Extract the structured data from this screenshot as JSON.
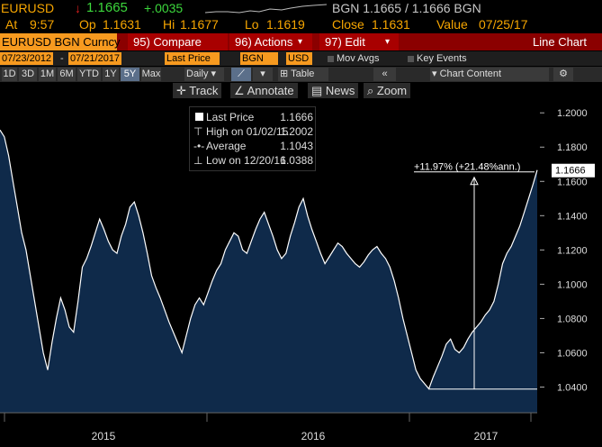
{
  "ticker": {
    "symbol": "EURUSD",
    "arrow": "↓",
    "last": "1.1665",
    "change": "+.0035",
    "quote": "BGN 1.1665 / 1.1666 BGN"
  },
  "info": {
    "at_label": "At",
    "at": "9:57",
    "op_label": "Op",
    "op": "1.1631",
    "hi_label": "Hi",
    "hi": "1.1677",
    "lo_label": "Lo",
    "lo": "1.1619",
    "close_label": "Close",
    "close": "1.1631",
    "value_label": "Value",
    "value": "07/25/17"
  },
  "toolbar": {
    "security": "EURUSD BGN Curncy",
    "compare": "95) Compare",
    "actions": "96) Actions",
    "edit": "97) Edit",
    "chart_type": "Line Chart"
  },
  "dates": {
    "start": "07/23/2012",
    "end": "07/21/2017",
    "field": "Last Price",
    "source": "BGN",
    "currency": "USD",
    "mov_avgs": "Mov Avgs",
    "key_events": "Key Events"
  },
  "periods": [
    "1D",
    "3D",
    "1M",
    "6M",
    "YTD",
    "1Y",
    "5Y",
    "Max"
  ],
  "selected_period": "5Y",
  "frequency": "Daily",
  "table_label": "Table",
  "chart_content_label": "Chart Content",
  "chart_tools": {
    "track": "Track",
    "annotate": "Annotate",
    "news": "News",
    "zoom": "Zoom"
  },
  "legend": [
    {
      "label": "Last Price",
      "value": "1.1666"
    },
    {
      "label": "High on 01/02/15",
      "value": "1.2002"
    },
    {
      "label": "Average",
      "value": "1.1043"
    },
    {
      "label": "Low on 12/20/16",
      "value": "1.0388"
    }
  ],
  "annotation": "+11.97% (+21.48%ann.)",
  "last_price_tag": "1.1666",
  "colors": {
    "amber": "#f7a600",
    "green": "#3cd73c",
    "red_bar": "#8b0000",
    "fill": "#0f2a4a",
    "line": "#ffffff"
  },
  "chart_data": {
    "type": "area",
    "y_ticks": [
      "1.2000",
      "1.1800",
      "1.1600",
      "1.1400",
      "1.1200",
      "1.1000",
      "1.0800",
      "1.0600",
      "1.0400"
    ],
    "x_ticks": [
      "2015",
      "2016",
      "2017"
    ],
    "ylim": [
      1.025,
      1.208
    ],
    "series": [
      {
        "values": [
          1.19,
          1.186,
          1.175,
          1.16,
          1.145,
          1.13,
          1.12,
          1.105,
          1.09,
          1.075,
          1.06,
          1.05,
          1.066,
          1.08,
          1.092,
          1.085,
          1.075,
          1.072,
          1.09,
          1.11,
          1.115,
          1.122,
          1.13,
          1.138,
          1.132,
          1.125,
          1.12,
          1.118,
          1.128,
          1.135,
          1.145,
          1.148,
          1.14,
          1.13,
          1.118,
          1.105,
          1.098,
          1.092,
          1.085,
          1.078,
          1.072,
          1.066,
          1.06,
          1.07,
          1.08,
          1.088,
          1.092,
          1.088,
          1.095,
          1.102,
          1.108,
          1.112,
          1.12,
          1.125,
          1.13,
          1.128,
          1.12,
          1.118,
          1.125,
          1.132,
          1.138,
          1.142,
          1.135,
          1.128,
          1.12,
          1.115,
          1.118,
          1.128,
          1.136,
          1.145,
          1.15,
          1.14,
          1.132,
          1.125,
          1.118,
          1.112,
          1.116,
          1.12,
          1.124,
          1.122,
          1.118,
          1.115,
          1.112,
          1.11,
          1.113,
          1.117,
          1.12,
          1.122,
          1.118,
          1.115,
          1.11,
          1.102,
          1.092,
          1.08,
          1.07,
          1.06,
          1.05,
          1.045,
          1.042,
          1.039,
          1.046,
          1.052,
          1.058,
          1.065,
          1.068,
          1.062,
          1.06,
          1.063,
          1.068,
          1.072,
          1.075,
          1.078,
          1.082,
          1.085,
          1.09,
          1.1,
          1.112,
          1.118,
          1.122,
          1.128,
          1.134,
          1.142,
          1.15,
          1.158,
          1.1666
        ]
      }
    ]
  }
}
